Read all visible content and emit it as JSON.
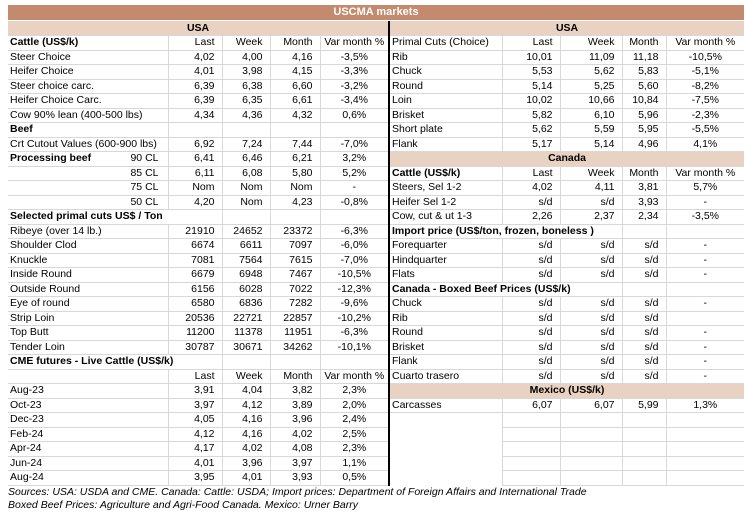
{
  "title": "USCMA markets",
  "colors": {
    "header_bar": "#C38A6D",
    "section_band": "#EAD2C2",
    "gridline": "#D8D8D8",
    "divider": "#000000"
  },
  "columns": [
    "Last",
    "Week",
    "Month",
    "Var month %"
  ],
  "left": {
    "band": "USA",
    "rows": [
      {
        "t": "header",
        "label": "Cattle (US$/k)",
        "bold": true
      },
      {
        "t": "data",
        "label": "Steer Choice",
        "v": [
          "4,02",
          "4,00",
          "4,16",
          "-3,5%"
        ]
      },
      {
        "t": "data",
        "label": "Heifer Choice",
        "v": [
          "4,01",
          "3,98",
          "4,15",
          "-3,3%"
        ]
      },
      {
        "t": "data",
        "label": "Steer choice carc.",
        "v": [
          "6,39",
          "6,38",
          "6,60",
          "-3,2%"
        ]
      },
      {
        "t": "data",
        "label": "Heifer Choice Carc.",
        "v": [
          "6,39",
          "6,35",
          "6,61",
          "-3,4%"
        ]
      },
      {
        "t": "data",
        "label": "Cow 90% lean (400-500 lbs)",
        "v": [
          "4,34",
          "4,36",
          "4,32",
          "0,6%"
        ]
      },
      {
        "t": "section",
        "label": "Beef",
        "span": 1
      },
      {
        "t": "data",
        "label": "Crt Cutout Values (600-900 lbs)",
        "v": [
          "6,92",
          "7,24",
          "7,44",
          "-7,0%"
        ]
      },
      {
        "t": "data",
        "label": "Processing beef",
        "sub": "90 CL",
        "v": [
          "6,41",
          "6,46",
          "6,21",
          "3,2%"
        ]
      },
      {
        "t": "data",
        "label": "85 CL",
        "align": "right",
        "v": [
          "6,11",
          "6,08",
          "5,80",
          "5,2%"
        ]
      },
      {
        "t": "data",
        "label": "75 CL",
        "align": "right",
        "v": [
          "Nom",
          "Nom",
          "Nom",
          "-"
        ]
      },
      {
        "t": "data",
        "label": "50 CL",
        "align": "right",
        "v": [
          "4,20",
          "Nom",
          "4,23",
          "-0,8%"
        ]
      },
      {
        "t": "section",
        "label": "Selected primal cuts US$ / Ton",
        "span": 2
      },
      {
        "t": "data",
        "label": "Ribeye (over 14 lb.)",
        "v": [
          "21910",
          "24652",
          "23372",
          "-6,3%"
        ]
      },
      {
        "t": "data",
        "label": "Shoulder Clod",
        "v": [
          "6674",
          "6611",
          "7097",
          "-6,0%"
        ]
      },
      {
        "t": "data",
        "label": "Knuckle",
        "v": [
          "7081",
          "7564",
          "7615",
          "-7,0%"
        ]
      },
      {
        "t": "data",
        "label": "Inside Round",
        "v": [
          "6679",
          "6948",
          "7467",
          "-10,5%"
        ]
      },
      {
        "t": "data",
        "label": "Outside Round",
        "v": [
          "6156",
          "6028",
          "7022",
          "-12,3%"
        ]
      },
      {
        "t": "data",
        "label": "Eye of round",
        "v": [
          "6580",
          "6836",
          "7282",
          "-9,6%"
        ]
      },
      {
        "t": "data",
        "label": "Strip Loin",
        "v": [
          "20536",
          "22721",
          "22857",
          "-10,2%"
        ]
      },
      {
        "t": "data",
        "label": "Top Butt",
        "v": [
          "11200",
          "11378",
          "11951",
          "-6,3%"
        ]
      },
      {
        "t": "data",
        "label": "Tender Loin",
        "v": [
          "30787",
          "30671",
          "34262",
          "-10,1%"
        ]
      },
      {
        "t": "section",
        "label": "CME futures - Live Cattle (US$/k)",
        "span": 2
      },
      {
        "t": "header",
        "label": "",
        "bold": false
      },
      {
        "t": "data",
        "label": "Aug-23",
        "v": [
          "3,91",
          "4,04",
          "3,82",
          "2,3%"
        ]
      },
      {
        "t": "data",
        "label": "Oct-23",
        "v": [
          "3,97",
          "4,12",
          "3,89",
          "2,0%"
        ]
      },
      {
        "t": "data",
        "label": "Dec-23",
        "v": [
          "4,05",
          "4,16",
          "3,96",
          "2,4%"
        ]
      },
      {
        "t": "data",
        "label": "Feb-24",
        "v": [
          "4,12",
          "4,16",
          "4,02",
          "2,5%"
        ]
      },
      {
        "t": "data",
        "label": "Apr-24",
        "v": [
          "4,17",
          "4,02",
          "4,08",
          "2,3%"
        ]
      },
      {
        "t": "data",
        "label": "Jun-24",
        "v": [
          "4,01",
          "3,96",
          "3,97",
          "1,1%"
        ]
      },
      {
        "t": "data",
        "label": "Aug-24",
        "v": [
          "3,95",
          "4,01",
          "3,93",
          "0,5%"
        ]
      }
    ]
  },
  "right": {
    "band": "USA",
    "rows": [
      {
        "t": "header",
        "label": "Primal Cuts (Choice)",
        "bold": false
      },
      {
        "t": "data",
        "label": "Rib",
        "v": [
          "10,01",
          "11,09",
          "11,18",
          "-10,5%"
        ]
      },
      {
        "t": "data",
        "label": "Chuck",
        "v": [
          "5,53",
          "5,62",
          "5,83",
          "-5,1%"
        ]
      },
      {
        "t": "data",
        "label": "Round",
        "v": [
          "5,14",
          "5,25",
          "5,60",
          "-8,2%"
        ]
      },
      {
        "t": "data",
        "label": "Loin",
        "v": [
          "10,02",
          "10,66",
          "10,84",
          "-7,5%"
        ]
      },
      {
        "t": "data",
        "label": "Brisket",
        "v": [
          "5,82",
          "6,10",
          "5,96",
          "-2,3%"
        ]
      },
      {
        "t": "data",
        "label": "Short plate",
        "v": [
          "5,62",
          "5,59",
          "5,95",
          "-5,5%"
        ]
      },
      {
        "t": "data",
        "label": "Flank",
        "v": [
          "5,17",
          "5,14",
          "4,96",
          "4,1%"
        ]
      },
      {
        "t": "band",
        "label": "Canada"
      },
      {
        "t": "header",
        "label": "Cattle (US$/k)",
        "bold": true
      },
      {
        "t": "data",
        "label": "Steers, Sel 1-2",
        "v": [
          "4,02",
          "4,11",
          "3,81",
          "5,7%"
        ]
      },
      {
        "t": "data",
        "label": "Heifer Sel 1-2",
        "v": [
          "s/d",
          "s/d",
          "3,93",
          "-"
        ]
      },
      {
        "t": "data",
        "label": "Cow, cut & ut 1-3",
        "v": [
          "2,26",
          "2,37",
          "2,34",
          "-3,5%"
        ]
      },
      {
        "t": "section",
        "label": "Import price (US$/ton, frozen, boneless )",
        "span": 3
      },
      {
        "t": "data",
        "label": "Forequarter",
        "v": [
          "s/d",
          "s/d",
          "s/d",
          "-"
        ]
      },
      {
        "t": "data",
        "label": "Hindquarter",
        "v": [
          "s/d",
          "s/d",
          "s/d",
          "-"
        ]
      },
      {
        "t": "data",
        "label": "Flats",
        "v": [
          "s/d",
          "s/d",
          "s/d",
          "-"
        ]
      },
      {
        "t": "section",
        "label": "Canada - Boxed Beef Prices (US$/k)",
        "span": 3
      },
      {
        "t": "data",
        "label": "Chuck",
        "v": [
          "s/d",
          "s/d",
          "s/d",
          "-"
        ]
      },
      {
        "t": "data",
        "label": "Rib",
        "v": [
          "s/d",
          "s/d",
          "s/d",
          ""
        ]
      },
      {
        "t": "data",
        "label": "Round",
        "v": [
          "s/d",
          "s/d",
          "s/d",
          "-"
        ]
      },
      {
        "t": "data",
        "label": "Brisket",
        "v": [
          "s/d",
          "s/d",
          "s/d",
          "-"
        ]
      },
      {
        "t": "data",
        "label": "Flank",
        "v": [
          "s/d",
          "s/d",
          "s/d",
          "-"
        ]
      },
      {
        "t": "data",
        "label": "Cuarto trasero",
        "v": [
          "s/d",
          "s/d",
          "s/d",
          "-"
        ]
      },
      {
        "t": "band",
        "label": "Mexico (US$/k)"
      },
      {
        "t": "data",
        "label": "Carcasses",
        "v": [
          "6,07",
          "6,07",
          "5,99",
          "1,3%"
        ]
      },
      {
        "t": "empty"
      },
      {
        "t": "empty"
      },
      {
        "t": "empty"
      },
      {
        "t": "empty"
      },
      {
        "t": "empty"
      }
    ]
  },
  "footer": {
    "line1": "Sources: USA: USDA and CME. Canada: Cattle: USDA; Import prices: Department of Foreign Affairs and International Trade",
    "line2": "Boxed Beef Prices: Agriculture and Agri-Food Canada. Mexico: Urner Barry"
  }
}
